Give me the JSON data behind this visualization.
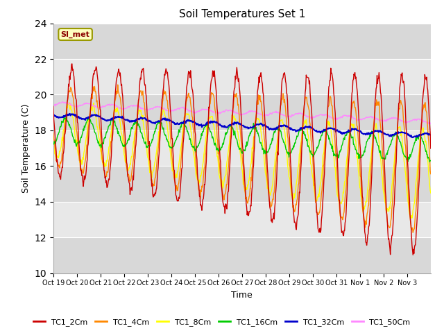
{
  "title": "Soil Temperatures Set 1",
  "xlabel": "Time",
  "ylabel": "Soil Temperature (C)",
  "ylim": [
    10,
    24
  ],
  "yticks": [
    10,
    12,
    14,
    16,
    18,
    20,
    22,
    24
  ],
  "annotation": "SI_met",
  "background_color": "#ffffff",
  "plot_bg": "#e8e8e8",
  "x_labels": [
    "Oct 19",
    "Oct 20",
    "Oct 21",
    "Oct 22",
    "Oct 23",
    "Oct 24",
    "Oct 25",
    "Oct 26",
    "Oct 27",
    "Oct 28",
    "Oct 29",
    "Oct 30",
    "Oct 31",
    "Nov 1",
    "Nov 2",
    "Nov 3"
  ],
  "series_colors": {
    "TC1_2Cm": "#cc0000",
    "TC1_4Cm": "#ff8800",
    "TC1_8Cm": "#ffff00",
    "TC1_16Cm": "#00cc00",
    "TC1_32Cm": "#0000cc",
    "TC1_50Cm": "#ff88ff"
  },
  "legend_labels": [
    "TC1_2Cm",
    "TC1_4Cm",
    "TC1_8Cm",
    "TC1_16Cm",
    "TC1_32Cm",
    "TC1_50Cm"
  ]
}
